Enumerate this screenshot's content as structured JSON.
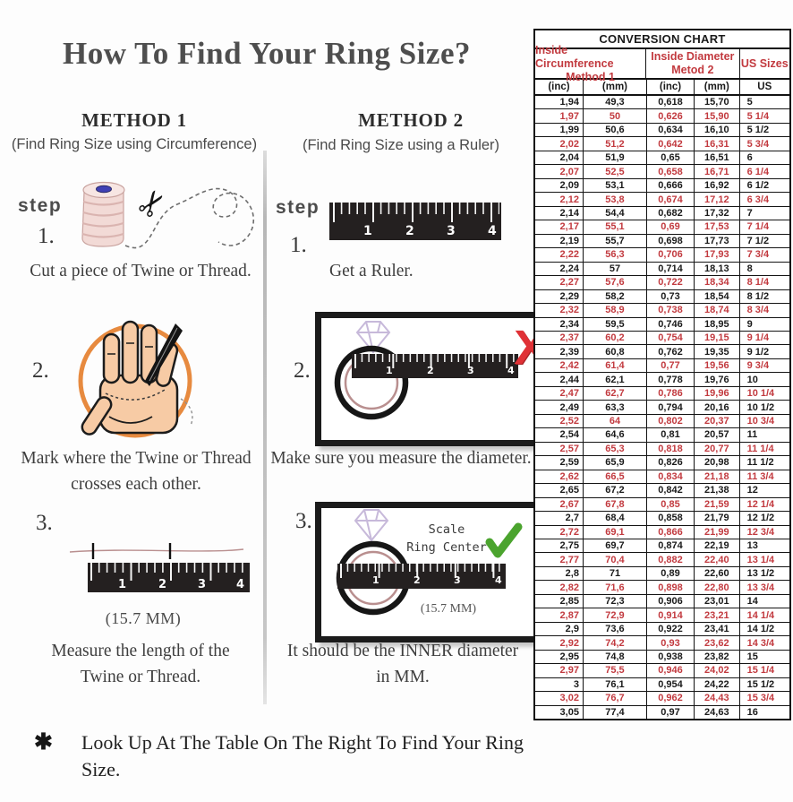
{
  "page": {
    "title": "How To Find Your Ring Size?",
    "footer_bullet": "✱",
    "footer_text": "Look Up At The Table On The Right To Find Your Ring Size."
  },
  "method1": {
    "heading": "METHOD 1",
    "subheading": "(Find Ring Size using Circumference)",
    "step_label": "step",
    "step1_num": "1.",
    "step1_text": "Cut a piece of Twine or Thread.",
    "step2_num": "2.",
    "step2_text_line1": "Mark where the Twine or Thread",
    "step2_text_line2": "crosses each other.",
    "step3_num": "3.",
    "step3_caption": "(15.7 MM)",
    "step3_text_line1": "Measure the length of the",
    "step3_text_line2": "Twine or Thread."
  },
  "method2": {
    "heading": "METHOD 2",
    "subheading": "(Find Ring Size using a Ruler)",
    "step_label": "step",
    "step1_num": "1.",
    "step1_text": "Get a Ruler.",
    "step2_num": "2.",
    "step2_text": "Make sure you measure the diameter.",
    "step3_num": "3.",
    "scale_label_line1": "Scale",
    "scale_label_line2": "Ring Center",
    "step3_caption": "(15.7 MM)",
    "step3_text_line1": "It should be the INNER diameter",
    "step3_text_line2": "in MM."
  },
  "marks": {
    "wrong_mark": "X",
    "right_mark": "✓"
  },
  "ruler_numbers": [
    "1",
    "2",
    "3",
    "4"
  ],
  "colors": {
    "table_red": "#c23a3f",
    "check_green": "#4ba42e",
    "x_red": "#e03136",
    "circle_orange": "#e78a3f",
    "ruler_black": "#242020"
  },
  "conversion_chart": {
    "title": "CONVERSION CHART",
    "group_headers": [
      {
        "line1": "Inside Circumference",
        "line2": "Method 1"
      },
      {
        "line1": "Inside Diameter",
        "line2": "Metod 2"
      },
      {
        "line1": "US Sizes"
      }
    ],
    "unit_headers": [
      "(inc)",
      "(mm)",
      "(inc)",
      "(mm)",
      "US"
    ],
    "rows": [
      [
        "1,94",
        "49,3",
        "0,618",
        "15,70",
        "5"
      ],
      [
        "1,97",
        "50",
        "0,626",
        "15,90",
        "5 1/4"
      ],
      [
        "1,99",
        "50,6",
        "0,634",
        "16,10",
        "5 1/2"
      ],
      [
        "2,02",
        "51,2",
        "0,642",
        "16,31",
        "5 3/4"
      ],
      [
        "2,04",
        "51,9",
        "0,65",
        "16,51",
        "6"
      ],
      [
        "2,07",
        "52,5",
        "0,658",
        "16,71",
        "6 1/4"
      ],
      [
        "2,09",
        "53,1",
        "0,666",
        "16,92",
        "6 1/2"
      ],
      [
        "2,12",
        "53,8",
        "0,674",
        "17,12",
        "6 3/4"
      ],
      [
        "2,14",
        "54,4",
        "0,682",
        "17,32",
        "7"
      ],
      [
        "2,17",
        "55,1",
        "0,69",
        "17,53",
        "7 1/4"
      ],
      [
        "2,19",
        "55,7",
        "0,698",
        "17,73",
        "7 1/2"
      ],
      [
        "2,22",
        "56,3",
        "0,706",
        "17,93",
        "7 3/4"
      ],
      [
        "2,24",
        "57",
        "0,714",
        "18,13",
        "8"
      ],
      [
        "2,27",
        "57,6",
        "0,722",
        "18,34",
        "8 1/4"
      ],
      [
        "2,29",
        "58,2",
        "0,73",
        "18,54",
        "8 1/2"
      ],
      [
        "2,32",
        "58,9",
        "0,738",
        "18,74",
        "8 3/4"
      ],
      [
        "2,34",
        "59,5",
        "0,746",
        "18,95",
        "9"
      ],
      [
        "2,37",
        "60,2",
        "0,754",
        "19,15",
        "9 1/4"
      ],
      [
        "2,39",
        "60,8",
        "0,762",
        "19,35",
        "9 1/2"
      ],
      [
        "2,42",
        "61,4",
        "0,77",
        "19,56",
        "9 3/4"
      ],
      [
        "2,44",
        "62,1",
        "0,778",
        "19,76",
        "10"
      ],
      [
        "2,47",
        "62,7",
        "0,786",
        "19,96",
        "10 1/4"
      ],
      [
        "2,49",
        "63,3",
        "0,794",
        "20,16",
        "10 1/2"
      ],
      [
        "2,52",
        "64",
        "0,802",
        "20,37",
        "10 3/4"
      ],
      [
        "2,54",
        "64,6",
        "0,81",
        "20,57",
        "11"
      ],
      [
        "2,57",
        "65,3",
        "0,818",
        "20,77",
        "11 1/4"
      ],
      [
        "2,59",
        "65,9",
        "0,826",
        "20,98",
        "11 1/2"
      ],
      [
        "2,62",
        "66,5",
        "0,834",
        "21,18",
        "11 3/4"
      ],
      [
        "2,65",
        "67,2",
        "0,842",
        "21,38",
        "12"
      ],
      [
        "2,67",
        "67,8",
        "0,85",
        "21,59",
        "12 1/4"
      ],
      [
        "2,7",
        "68,4",
        "0,858",
        "21,79",
        "12 1/2"
      ],
      [
        "2,72",
        "69,1",
        "0,866",
        "21,99",
        "12 3/4"
      ],
      [
        "2,75",
        "69,7",
        "0,874",
        "22,19",
        "13"
      ],
      [
        "2,77",
        "70,4",
        "0,882",
        "22,40",
        "13 1/4"
      ],
      [
        "2,8",
        "71",
        "0,89",
        "22,60",
        "13 1/2"
      ],
      [
        "2,82",
        "71,6",
        "0,898",
        "22,80",
        "13 3/4"
      ],
      [
        "2,85",
        "72,3",
        "0,906",
        "23,01",
        "14"
      ],
      [
        "2,87",
        "72,9",
        "0,914",
        "23,21",
        "14 1/4"
      ],
      [
        "2,9",
        "73,6",
        "0,922",
        "23,41",
        "14 1/2"
      ],
      [
        "2,92",
        "74,2",
        "0,93",
        "23,62",
        "14 3/4"
      ],
      [
        "2,95",
        "74,8",
        "0,938",
        "23,82",
        "15"
      ],
      [
        "2,97",
        "75,5",
        "0,946",
        "24,02",
        "15 1/4"
      ],
      [
        "3",
        "76,1",
        "0,954",
        "24,22",
        "15 1/2"
      ],
      [
        "3,02",
        "76,7",
        "0,962",
        "24,43",
        "15 3/4"
      ],
      [
        "3,05",
        "77,4",
        "0,97",
        "24,63",
        "16"
      ]
    ]
  }
}
